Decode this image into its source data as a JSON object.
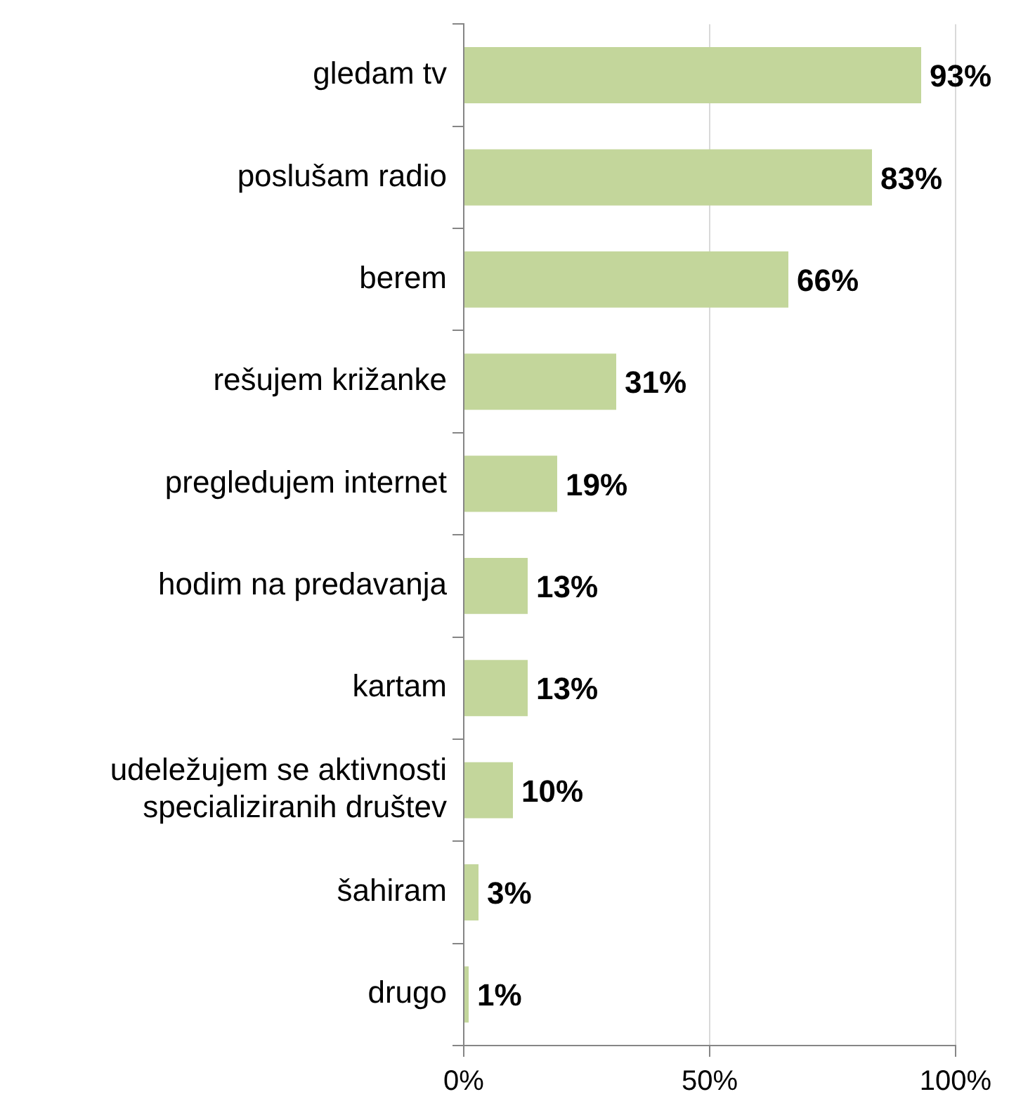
{
  "chart_data": {
    "type": "bar",
    "orientation": "horizontal",
    "categories": [
      "gledam tv",
      "poslušam radio",
      "berem",
      "rešujem križanke",
      "pregledujem internet",
      "hodim na predavanja",
      "kartam",
      "udeležujem se aktivnosti specializiranih društev",
      "šahiram",
      "drugo"
    ],
    "values": [
      93,
      83,
      66,
      31,
      19,
      13,
      13,
      10,
      3,
      1
    ],
    "value_labels": [
      "93%",
      "83%",
      "66%",
      "31%",
      "19%",
      "13%",
      "13%",
      "10%",
      "3%",
      "1%"
    ],
    "color": "#c3d69b",
    "xlim": [
      0,
      100
    ],
    "xticks": [
      {
        "value": 0,
        "label": "0%"
      },
      {
        "value": 50,
        "label": "50%"
      },
      {
        "value": 100,
        "label": "100%"
      }
    ],
    "grid": "x"
  }
}
